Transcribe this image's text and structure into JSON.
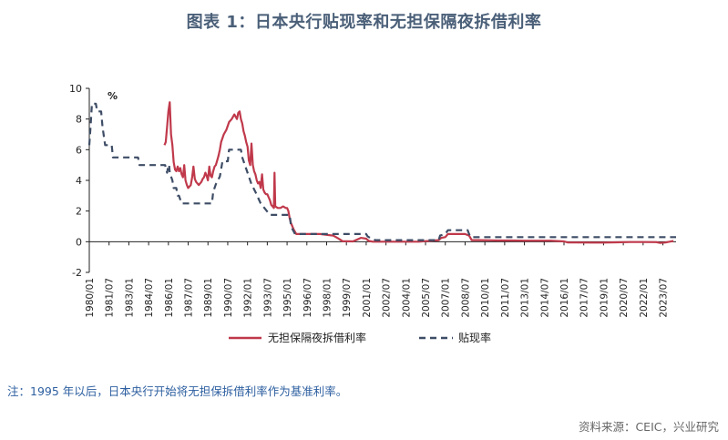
{
  "title": "图表 1：日本央行贴现率和无担保隔夜拆借利率",
  "note": "注：1995 年以后，日本央行开始将无担保拆借利率作为基准利率。",
  "source": "资料来源：CEIC，兴业研究",
  "chart_data": {
    "type": "line",
    "unit_label": "%",
    "ylim": [
      -2,
      10
    ],
    "yticks": [
      -2,
      0,
      2,
      4,
      6,
      8,
      10
    ],
    "xlim": [
      1980.0,
      2024.5
    ],
    "xticks": [
      "1980/01",
      "1981/07",
      "1983/01",
      "1984/07",
      "1986/01",
      "1987/07",
      "1989/01",
      "1990/07",
      "1992/01",
      "1993/07",
      "1995/01",
      "1996/07",
      "1998/01",
      "1999/07",
      "2001/01",
      "2002/07",
      "2004/01",
      "2005/07",
      "2007/01",
      "2008/07",
      "2010/01",
      "2011/07",
      "2013/01",
      "2014/07",
      "2016/01",
      "2017/07",
      "2019/01",
      "2020/07",
      "2022/01",
      "2023/07"
    ],
    "legend": "bottom",
    "series": [
      {
        "name": "无担保隔夜拆借利率",
        "color": "#c0394b",
        "dash": false,
        "points": [
          [
            1985.7,
            6.3
          ],
          [
            1985.8,
            6.5
          ],
          [
            1985.9,
            7.5
          ],
          [
            1986.0,
            8.5
          ],
          [
            1986.1,
            9.1
          ],
          [
            1986.2,
            7.0
          ],
          [
            1986.3,
            6.3
          ],
          [
            1986.4,
            5.2
          ],
          [
            1986.5,
            4.7
          ],
          [
            1986.6,
            4.6
          ],
          [
            1986.7,
            4.9
          ],
          [
            1986.8,
            4.6
          ],
          [
            1986.9,
            4.8
          ],
          [
            1987.0,
            4.4
          ],
          [
            1987.1,
            4.2
          ],
          [
            1987.2,
            5.0
          ],
          [
            1987.3,
            4.0
          ],
          [
            1987.4,
            3.7
          ],
          [
            1987.5,
            3.5
          ],
          [
            1987.6,
            3.6
          ],
          [
            1987.7,
            3.7
          ],
          [
            1987.8,
            4.2
          ],
          [
            1987.9,
            4.9
          ],
          [
            1988.0,
            4.1
          ],
          [
            1988.1,
            3.9
          ],
          [
            1988.2,
            3.8
          ],
          [
            1988.3,
            3.7
          ],
          [
            1988.4,
            3.8
          ],
          [
            1988.5,
            3.9
          ],
          [
            1988.6,
            4.1
          ],
          [
            1988.7,
            4.2
          ],
          [
            1988.8,
            4.5
          ],
          [
            1988.9,
            4.3
          ],
          [
            1989.0,
            4.0
          ],
          [
            1989.1,
            4.9
          ],
          [
            1989.2,
            4.3
          ],
          [
            1989.3,
            4.2
          ],
          [
            1989.4,
            4.6
          ],
          [
            1989.5,
            4.9
          ],
          [
            1989.6,
            5.0
          ],
          [
            1989.7,
            5.3
          ],
          [
            1989.8,
            5.6
          ],
          [
            1989.9,
            6.0
          ],
          [
            1990.0,
            6.5
          ],
          [
            1990.2,
            7.0
          ],
          [
            1990.4,
            7.3
          ],
          [
            1990.6,
            7.8
          ],
          [
            1990.8,
            8.0
          ],
          [
            1991.0,
            8.3
          ],
          [
            1991.2,
            8.0
          ],
          [
            1991.3,
            8.4
          ],
          [
            1991.4,
            8.5
          ],
          [
            1991.5,
            8.0
          ],
          [
            1991.6,
            7.7
          ],
          [
            1991.7,
            7.2
          ],
          [
            1991.8,
            6.9
          ],
          [
            1991.9,
            6.5
          ],
          [
            1992.0,
            6.2
          ],
          [
            1992.1,
            5.3
          ],
          [
            1992.2,
            5.0
          ],
          [
            1992.3,
            6.4
          ],
          [
            1992.4,
            5.0
          ],
          [
            1992.5,
            4.6
          ],
          [
            1992.6,
            4.4
          ],
          [
            1992.7,
            4.0
          ],
          [
            1992.8,
            3.8
          ],
          [
            1992.9,
            3.9
          ],
          [
            1993.0,
            3.5
          ],
          [
            1993.1,
            4.4
          ],
          [
            1993.2,
            3.4
          ],
          [
            1993.3,
            3.2
          ],
          [
            1993.4,
            3.1
          ],
          [
            1993.5,
            3.1
          ],
          [
            1993.6,
            2.9
          ],
          [
            1993.7,
            2.7
          ],
          [
            1993.8,
            2.4
          ],
          [
            1993.9,
            2.3
          ],
          [
            1994.0,
            2.2
          ],
          [
            1994.05,
            4.5
          ],
          [
            1994.1,
            2.3
          ],
          [
            1994.3,
            2.2
          ],
          [
            1994.5,
            2.2
          ],
          [
            1994.7,
            2.3
          ],
          [
            1994.9,
            2.2
          ],
          [
            1995.0,
            2.2
          ],
          [
            1995.1,
            2.0
          ],
          [
            1995.2,
            1.5
          ],
          [
            1995.3,
            1.2
          ],
          [
            1995.4,
            1.0
          ],
          [
            1995.5,
            0.8
          ],
          [
            1995.7,
            0.5
          ],
          [
            1996.0,
            0.5
          ],
          [
            1997.0,
            0.5
          ],
          [
            1997.5,
            0.5
          ],
          [
            1998.0,
            0.45
          ],
          [
            1998.5,
            0.4
          ],
          [
            1998.8,
            0.25
          ],
          [
            1999.0,
            0.15
          ],
          [
            1999.2,
            0.03
          ],
          [
            2000.0,
            0.02
          ],
          [
            2000.6,
            0.25
          ],
          [
            2001.0,
            0.2
          ],
          [
            2001.2,
            0.05
          ],
          [
            2001.5,
            0.0
          ],
          [
            2003.0,
            0.0
          ],
          [
            2005.0,
            0.0
          ],
          [
            2006.5,
            0.1
          ],
          [
            2006.7,
            0.25
          ],
          [
            2007.0,
            0.3
          ],
          [
            2007.2,
            0.5
          ],
          [
            2007.5,
            0.5
          ],
          [
            2008.0,
            0.5
          ],
          [
            2008.5,
            0.5
          ],
          [
            2008.8,
            0.4
          ],
          [
            2009.0,
            0.1
          ],
          [
            2009.5,
            0.1
          ],
          [
            2010.5,
            0.09
          ],
          [
            2011.0,
            0.08
          ],
          [
            2012.0,
            0.08
          ],
          [
            2013.0,
            0.07
          ],
          [
            2014.0,
            0.07
          ],
          [
            2015.0,
            0.07
          ],
          [
            2016.0,
            0.02
          ],
          [
            2016.3,
            -0.05
          ],
          [
            2017.0,
            -0.05
          ],
          [
            2018.0,
            -0.06
          ],
          [
            2019.0,
            -0.06
          ],
          [
            2020.0,
            -0.04
          ],
          [
            2021.0,
            -0.02
          ],
          [
            2022.0,
            -0.02
          ],
          [
            2023.0,
            -0.03
          ],
          [
            2023.3,
            -0.08
          ],
          [
            2023.7,
            -0.05
          ],
          [
            2024.0,
            0.0
          ],
          [
            2024.3,
            0.05
          ]
        ]
      },
      {
        "name": "贴现率",
        "color": "#3e4d66",
        "dash": true,
        "points": [
          [
            1980.0,
            6.3
          ],
          [
            1980.1,
            7.5
          ],
          [
            1980.2,
            9.0
          ],
          [
            1980.5,
            9.0
          ],
          [
            1980.6,
            8.5
          ],
          [
            1980.9,
            8.5
          ],
          [
            1981.0,
            7.5
          ],
          [
            1981.2,
            6.3
          ],
          [
            1981.5,
            6.3
          ],
          [
            1981.7,
            6.3
          ],
          [
            1981.8,
            5.5
          ],
          [
            1983.7,
            5.5
          ],
          [
            1983.8,
            5.0
          ],
          [
            1985.7,
            5.0
          ],
          [
            1985.75,
            5.0
          ],
          [
            1985.9,
            4.5
          ],
          [
            1986.0,
            5.0
          ],
          [
            1986.05,
            5.0
          ],
          [
            1986.1,
            4.5
          ],
          [
            1986.3,
            4.0
          ],
          [
            1986.4,
            3.5
          ],
          [
            1986.6,
            3.5
          ],
          [
            1986.7,
            3.0
          ],
          [
            1986.8,
            3.0
          ],
          [
            1987.0,
            2.5
          ],
          [
            1989.3,
            2.5
          ],
          [
            1989.4,
            3.25
          ],
          [
            1989.6,
            3.75
          ],
          [
            1989.9,
            4.25
          ],
          [
            1990.1,
            5.25
          ],
          [
            1990.5,
            5.25
          ],
          [
            1990.6,
            6.0
          ],
          [
            1991.5,
            6.0
          ],
          [
            1991.6,
            5.5
          ],
          [
            1991.8,
            5.0
          ],
          [
            1992.0,
            4.5
          ],
          [
            1992.3,
            3.75
          ],
          [
            1992.6,
            3.25
          ],
          [
            1993.0,
            2.5
          ],
          [
            1993.7,
            1.75
          ],
          [
            1995.2,
            1.75
          ],
          [
            1995.3,
            1.0
          ],
          [
            1995.6,
            0.5
          ],
          [
            2001.0,
            0.5
          ],
          [
            2001.1,
            0.35
          ],
          [
            2001.3,
            0.25
          ],
          [
            2001.7,
            0.1
          ],
          [
            2006.5,
            0.1
          ],
          [
            2006.6,
            0.4
          ],
          [
            2007.0,
            0.5
          ],
          [
            2007.2,
            0.75
          ],
          [
            2008.7,
            0.75
          ],
          [
            2008.8,
            0.5
          ],
          [
            2008.95,
            0.3
          ],
          [
            2024.5,
            0.3
          ]
        ]
      }
    ]
  }
}
